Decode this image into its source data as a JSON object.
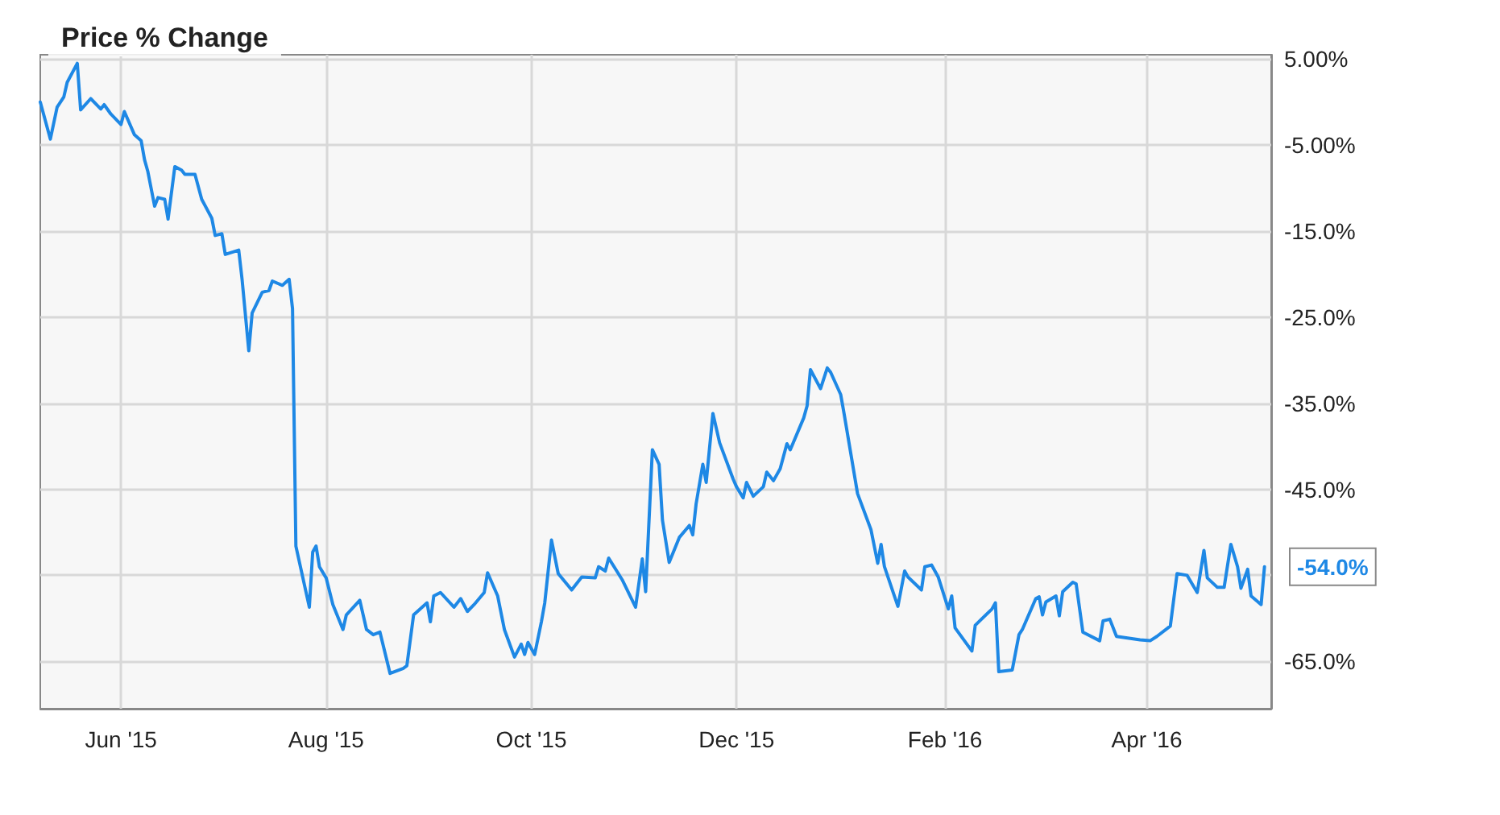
{
  "chart_data": {
    "type": "line",
    "title": "Price % Change",
    "x": [
      "2015-05-08",
      "2015-05-11",
      "2015-05-13",
      "2015-05-15",
      "2015-05-16",
      "2015-05-19",
      "2015-05-20",
      "2015-05-23",
      "2015-05-26",
      "2015-05-27",
      "2015-05-29",
      "2015-06-01",
      "2015-06-02",
      "2015-06-05",
      "2015-06-07",
      "2015-06-08",
      "2015-06-09",
      "2015-06-11",
      "2015-06-12",
      "2015-06-14",
      "2015-06-15",
      "2015-06-17",
      "2015-06-19",
      "2015-06-20",
      "2015-06-23",
      "2015-06-25",
      "2015-06-28",
      "2015-06-29",
      "2015-07-01",
      "2015-07-02",
      "2015-07-06",
      "2015-07-07",
      "2015-07-09",
      "2015-07-10",
      "2015-07-13",
      "2015-07-15",
      "2015-07-16",
      "2015-07-19",
      "2015-07-21",
      "2015-07-22",
      "2015-07-23",
      "2015-07-27",
      "2015-07-28",
      "2015-07-29",
      "2015-07-30",
      "2015-08-01",
      "2015-08-03",
      "2015-08-06",
      "2015-08-07",
      "2015-08-11",
      "2015-08-13",
      "2015-08-15",
      "2015-08-17",
      "2015-08-20",
      "2015-08-24",
      "2015-08-25",
      "2015-08-27",
      "2015-08-31",
      "2015-09-01",
      "2015-09-02",
      "2015-09-04",
      "2015-09-08",
      "2015-09-10",
      "2015-09-12",
      "2015-09-14",
      "2015-09-17",
      "2015-09-18",
      "2015-09-21",
      "2015-09-23",
      "2015-09-26",
      "2015-09-28",
      "2015-09-29",
      "2015-09-30",
      "2015-10-02",
      "2015-10-04",
      "2015-10-05",
      "2015-10-07",
      "2015-10-09",
      "2015-10-13",
      "2015-10-16",
      "2015-10-20",
      "2015-10-21",
      "2015-10-23",
      "2015-10-24",
      "2015-10-28",
      "2015-11-01",
      "2015-11-03",
      "2015-11-04",
      "2015-11-06",
      "2015-11-08",
      "2015-11-09",
      "2015-11-11",
      "2015-11-14",
      "2015-11-17",
      "2015-11-18",
      "2015-11-19",
      "2015-11-21",
      "2015-11-22",
      "2015-11-24",
      "2015-11-26",
      "2015-11-30",
      "2015-12-01",
      "2015-12-03",
      "2015-12-04",
      "2015-12-06",
      "2015-12-09",
      "2015-12-10",
      "2015-12-12",
      "2015-12-14",
      "2015-12-16",
      "2015-12-17",
      "2015-12-21",
      "2015-12-22",
      "2015-12-23",
      "2015-12-26",
      "2015-12-28",
      "2015-12-29",
      "2016-01-01",
      "2016-01-02",
      "2016-01-06",
      "2016-01-10",
      "2016-01-12",
      "2016-01-13",
      "2016-01-14",
      "2016-01-18",
      "2016-01-20",
      "2016-01-21",
      "2016-01-25",
      "2016-01-26",
      "2016-01-28",
      "2016-01-30",
      "2016-02-02",
      "2016-02-03",
      "2016-02-04",
      "2016-02-09",
      "2016-02-10",
      "2016-02-15",
      "2016-02-16",
      "2016-02-17",
      "2016-02-21",
      "2016-02-23",
      "2016-02-24",
      "2016-02-28",
      "2016-02-29",
      "2016-03-01",
      "2016-03-02",
      "2016-03-05",
      "2016-03-06",
      "2016-03-07",
      "2016-03-10",
      "2016-03-11",
      "2016-03-13",
      "2016-03-18",
      "2016-03-19",
      "2016-03-21",
      "2016-03-23",
      "2016-03-30",
      "2016-04-02",
      "2016-04-04",
      "2016-04-08",
      "2016-04-10",
      "2016-04-13",
      "2016-04-16",
      "2016-04-18",
      "2016-04-19",
      "2016-04-22",
      "2016-04-24",
      "2016-04-26",
      "2016-04-28",
      "2016-04-29",
      "2016-05-01",
      "2016-05-02",
      "2016-05-05",
      "2016-05-06"
    ],
    "series": [
      {
        "color": "#1e88e5",
        "values": [
          0,
          -4.3,
          -0.6,
          0.6,
          2.3,
          4.5,
          -0.9,
          0.4,
          -0.8,
          -0.3,
          -1.4,
          -2.6,
          -1.1,
          -3.8,
          -4.5,
          -6.7,
          -8.1,
          -12.1,
          -11.1,
          -11.3,
          -13.6,
          -7.5,
          -7.9,
          -8.4,
          -8.4,
          -11.3,
          -13.5,
          -15.5,
          -15.3,
          -17.7,
          -17.2,
          -20.6,
          -28.9,
          -24.5,
          -22.1,
          -21.9,
          -20.8,
          -21.3,
          -20.6,
          -24.0,
          -51.6,
          -58.7,
          -52.3,
          -51.6,
          -54.0,
          -55.3,
          -58.4,
          -61.3,
          -59.6,
          -57.9,
          -61.3,
          -61.9,
          -61.6,
          -66.4,
          -65.8,
          -65.5,
          -59.6,
          -58.2,
          -60.4,
          -57.4,
          -57.0,
          -58.7,
          -57.7,
          -59.2,
          -58.4,
          -57.0,
          -54.7,
          -57.4,
          -61.3,
          -64.5,
          -63.0,
          -64.2,
          -62.8,
          -64.2,
          -60.4,
          -58.2,
          -50.9,
          -54.8,
          -56.7,
          -55.2,
          -55.3,
          -54.0,
          -54.5,
          -53.0,
          -55.5,
          -58.7,
          -53.1,
          -56.9,
          -40.4,
          -42.1,
          -48.6,
          -53.5,
          -50.6,
          -49.2,
          -50.3,
          -46.7,
          -42.1,
          -44.2,
          -36.2,
          -39.6,
          -43.8,
          -44.7,
          -46.0,
          -44.2,
          -45.8,
          -44.7,
          -43.0,
          -44.0,
          -42.6,
          -39.7,
          -40.4,
          -36.7,
          -35.3,
          -31.1,
          -33.3,
          -30.9,
          -31.4,
          -34.0,
          -36.2,
          -45.5,
          -49.7,
          -53.6,
          -51.4,
          -54.0,
          -58.6,
          -54.5,
          -55.2,
          -56.7,
          -54.0,
          -53.8,
          -55.2,
          -58.9,
          -57.4,
          -61.1,
          -63.8,
          -60.8,
          -58.9,
          -58.2,
          -66.2,
          -66.0,
          -61.9,
          -61.3,
          -57.7,
          -57.5,
          -59.6,
          -58.1,
          -57.4,
          -59.7,
          -56.9,
          -55.8,
          -56.0,
          -61.6,
          -62.6,
          -60.3,
          -60.1,
          -62.1,
          -62.5,
          -62.6,
          -62.1,
          -60.9,
          -54.8,
          -55.0,
          -57.0,
          -52.1,
          -55.3,
          -56.4,
          -56.4,
          -51.4,
          -54.0,
          -56.5,
          -54.3,
          -57.4,
          -58.4,
          -54.0
        ]
      }
    ],
    "xlim": [
      "2015-05-08",
      "2016-05-08"
    ],
    "xticks": [
      {
        "value": "2015-06-01",
        "label": "Jun '15"
      },
      {
        "value": "2015-08-01",
        "label": "Aug '15"
      },
      {
        "value": "2015-10-01",
        "label": "Oct '15"
      },
      {
        "value": "2015-12-01",
        "label": "Dec '15"
      },
      {
        "value": "2016-02-01",
        "label": "Feb '16"
      },
      {
        "value": "2016-04-01",
        "label": "Apr '16"
      }
    ],
    "ylim": [
      -70.5,
      5.5
    ],
    "yticks": [
      {
        "value": 5,
        "label": "5.00%"
      },
      {
        "value": -5,
        "label": "-5.00%"
      },
      {
        "value": -15,
        "label": "-15.0%"
      },
      {
        "value": -25,
        "label": "-25.0%"
      },
      {
        "value": -35,
        "label": "-35.0%"
      },
      {
        "value": -45,
        "label": "-45.0%"
      },
      {
        "value": -55,
        "label": null
      },
      {
        "value": -65,
        "label": "-65.0%"
      }
    ],
    "annotations": [
      {
        "text": "-54.0%",
        "x": "2016-05-06",
        "y": -54.0
      }
    ],
    "grid": true,
    "marker": "none",
    "line_style": "solid"
  }
}
